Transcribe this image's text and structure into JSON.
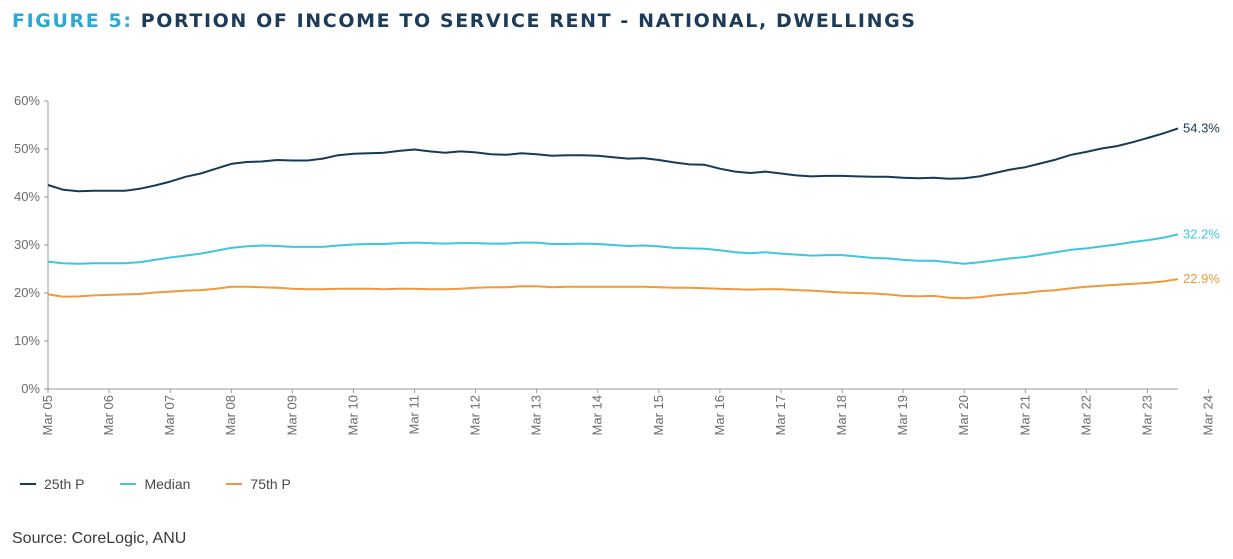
{
  "figure": {
    "label": "FIGURE 5:",
    "title": "PORTION OF INCOME TO SERVICE RENT - NATIONAL, DWELLINGS"
  },
  "source": "Source: CoreLogic, ANU",
  "chart_data": {
    "type": "line",
    "title": "PORTION OF INCOME TO SERVICE RENT - NATIONAL, DWELLINGS",
    "xlabel": "",
    "ylabel": "",
    "ylim": [
      0,
      60
    ],
    "yticks": [
      "0%",
      "10%",
      "20%",
      "30%",
      "40%",
      "50%",
      "60%"
    ],
    "xtick_labels": [
      "Mar 05",
      "Mar 06",
      "Mar 07",
      "Mar 08",
      "Mar 09",
      "Mar 10",
      "Mar 11",
      "Mar 12",
      "Mar 13",
      "Mar 14",
      "Mar 15",
      "Mar 16",
      "Mar 17",
      "Mar 18",
      "Mar 19",
      "Mar 20",
      "Mar 21",
      "Mar 22",
      "Mar 23",
      "Mar 24"
    ],
    "x_start": 2005.0,
    "x_step": 0.25,
    "grid": false,
    "legend_position": "bottom-left",
    "series": [
      {
        "name": "25th P",
        "color": "#173b57",
        "end_label": "54.3%",
        "values": [
          42.5,
          41.5,
          41.2,
          41.3,
          41.3,
          41.3,
          41.7,
          42.4,
          43.2,
          44.2,
          44.9,
          45.9,
          46.9,
          47.3,
          47.4,
          47.7,
          47.6,
          47.6,
          48.0,
          48.7,
          49.0,
          49.1,
          49.2,
          49.6,
          49.9,
          49.5,
          49.2,
          49.5,
          49.3,
          48.9,
          48.8,
          49.1,
          48.9,
          48.6,
          48.7,
          48.7,
          48.6,
          48.3,
          48.0,
          48.1,
          47.7,
          47.2,
          46.8,
          46.7,
          45.9,
          45.3,
          45.0,
          45.3,
          44.9,
          44.5,
          44.3,
          44.4,
          44.4,
          44.3,
          44.2,
          44.2,
          44.0,
          43.9,
          44.0,
          43.8,
          43.9,
          44.3,
          45.0,
          45.7,
          46.2,
          47.0,
          47.8,
          48.8,
          49.4,
          50.1,
          50.6,
          51.4,
          52.3,
          53.2,
          54.3
        ]
      },
      {
        "name": "Median",
        "color": "#3ec6dc",
        "end_label": "32.2%",
        "values": [
          26.5,
          26.2,
          26.1,
          26.2,
          26.2,
          26.2,
          26.4,
          26.9,
          27.4,
          27.8,
          28.2,
          28.8,
          29.4,
          29.7,
          29.9,
          29.8,
          29.6,
          29.6,
          29.6,
          29.9,
          30.1,
          30.2,
          30.2,
          30.4,
          30.5,
          30.4,
          30.3,
          30.4,
          30.4,
          30.3,
          30.3,
          30.5,
          30.5,
          30.2,
          30.2,
          30.3,
          30.2,
          30.0,
          29.8,
          29.9,
          29.7,
          29.4,
          29.3,
          29.2,
          28.9,
          28.5,
          28.3,
          28.5,
          28.2,
          28.0,
          27.8,
          27.9,
          27.9,
          27.6,
          27.3,
          27.2,
          26.9,
          26.7,
          26.7,
          26.4,
          26.1,
          26.4,
          26.8,
          27.2,
          27.5,
          28.0,
          28.5,
          29.0,
          29.3,
          29.7,
          30.1,
          30.6,
          31.0,
          31.5,
          32.2
        ]
      },
      {
        "name": "75th P",
        "color": "#f0993a",
        "end_label": "22.9%",
        "values": [
          19.7,
          19.2,
          19.3,
          19.5,
          19.6,
          19.7,
          19.8,
          20.1,
          20.3,
          20.5,
          20.6,
          20.9,
          21.3,
          21.3,
          21.2,
          21.1,
          20.9,
          20.8,
          20.8,
          20.9,
          20.9,
          20.9,
          20.8,
          20.9,
          20.9,
          20.8,
          20.8,
          20.9,
          21.1,
          21.2,
          21.2,
          21.4,
          21.4,
          21.2,
          21.3,
          21.3,
          21.3,
          21.3,
          21.3,
          21.3,
          21.2,
          21.1,
          21.1,
          21.0,
          20.9,
          20.8,
          20.7,
          20.8,
          20.8,
          20.6,
          20.5,
          20.3,
          20.1,
          20.0,
          19.9,
          19.7,
          19.4,
          19.3,
          19.4,
          19.0,
          18.9,
          19.1,
          19.5,
          19.8,
          20.0,
          20.4,
          20.6,
          21.0,
          21.3,
          21.5,
          21.7,
          21.9,
          22.1,
          22.4,
          22.9
        ]
      }
    ]
  }
}
